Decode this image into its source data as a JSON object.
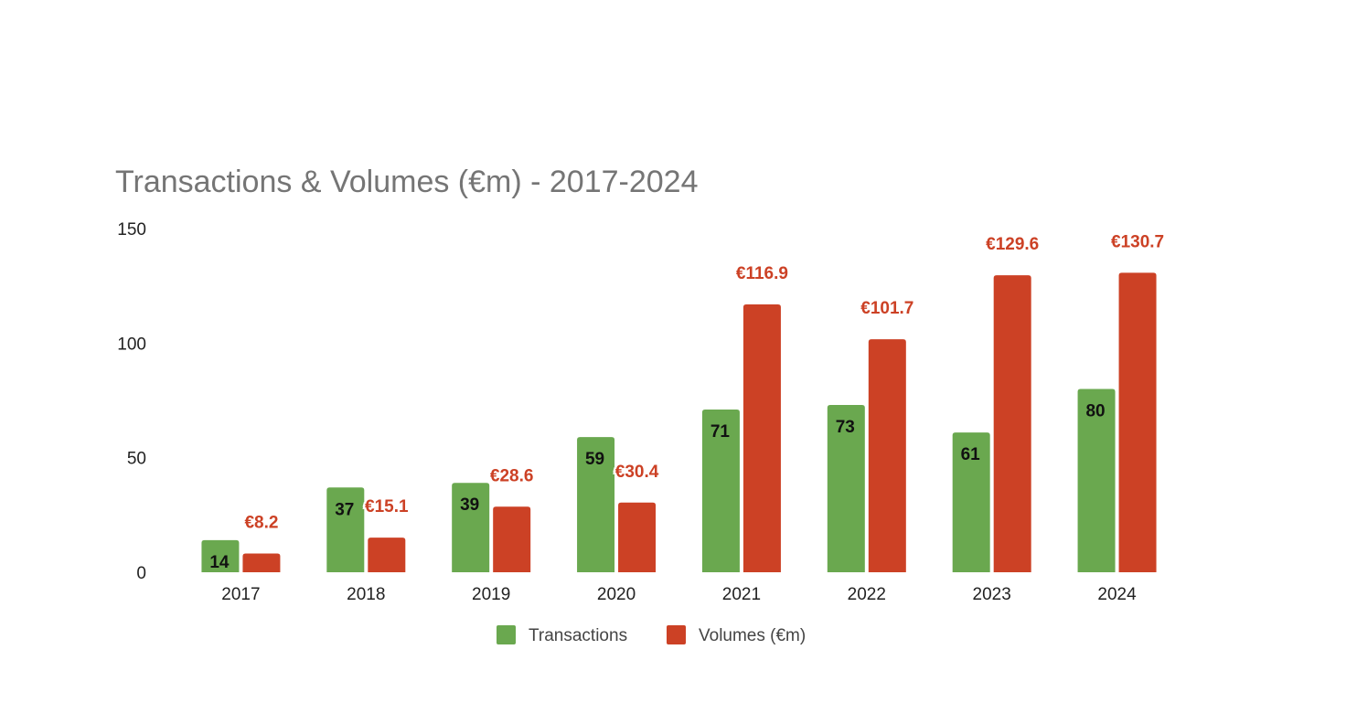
{
  "chart_data": {
    "type": "bar",
    "title": "Transactions & Volumes (€m) - 2017-2024",
    "categories": [
      "2017",
      "2018",
      "2019",
      "2020",
      "2021",
      "2022",
      "2023",
      "2024"
    ],
    "series": [
      {
        "name": "Transactions",
        "color": "#6aa84f",
        "values": [
          14,
          37,
          39,
          59,
          71,
          73,
          61,
          80
        ],
        "labels": [
          "14",
          "37",
          "39",
          "59",
          "71",
          "73",
          "61",
          "80"
        ]
      },
      {
        "name": "Volumes (€m)",
        "color": "#cc4125",
        "values": [
          8.2,
          15.1,
          28.6,
          30.4,
          116.9,
          101.7,
          129.6,
          130.7
        ],
        "labels": [
          "€8.2",
          "€15.1",
          "€28.6",
          "€30.4",
          "€116.9",
          "€101.7",
          "€129.6",
          "€130.7"
        ]
      }
    ],
    "xlabel": "",
    "ylabel": "",
    "ylim": [
      0,
      150
    ],
    "yticks": [
      "0",
      "50",
      "100",
      "150"
    ],
    "grid": false,
    "legend_position": "bottom"
  }
}
